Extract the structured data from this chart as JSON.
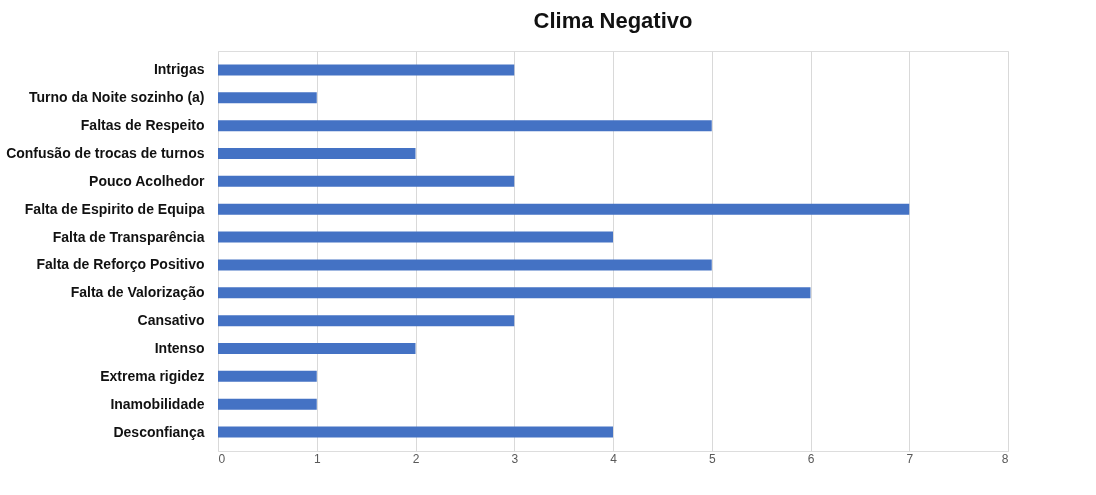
{
  "chart_data": {
    "type": "bar",
    "orientation": "horizontal",
    "title": "Clima Negativo",
    "categories": [
      "Intrigas",
      "Turno da Noite sozinho (a)",
      "Faltas de Respeito",
      "Confusão de trocas de turnos",
      "Pouco Acolhedor",
      "Falta de Espirito de Equipa",
      "Falta de Transparência",
      "Falta de Reforço Positivo",
      "Falta de Valorização",
      "Cansativo",
      "Intenso",
      "Extrema rigidez",
      "Inamobilidade",
      "Desconfiança"
    ],
    "values": [
      3,
      1,
      5,
      2,
      3,
      7,
      4,
      5,
      6,
      3,
      2,
      1,
      1,
      4
    ],
    "color": "#4472c4",
    "xlim": [
      0,
      8
    ],
    "xticks": [
      0,
      1,
      2,
      3,
      4,
      5,
      6,
      7,
      8
    ],
    "grid": "x"
  }
}
